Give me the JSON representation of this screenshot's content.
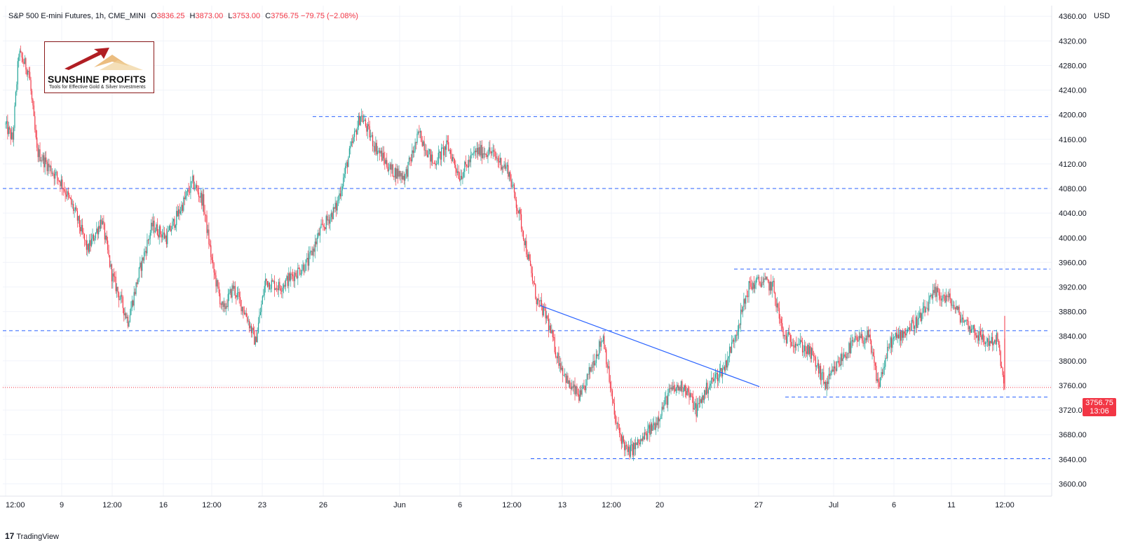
{
  "header": {
    "symbol": "S&P 500 E-mini Futures, 1h, CME_MINI",
    "o_label": "O",
    "o_value": "3836.25",
    "h_label": "H",
    "h_value": "3873.00",
    "l_label": "L",
    "l_value": "3753.00",
    "c_label": "C",
    "c_value": "3756.75",
    "change": "−79.75 (−2.08%)"
  },
  "currency": "USD",
  "logo": {
    "brand": "SUNSHINE PROFITS",
    "tagline": "Tools for Effective Gold & Silver Investments"
  },
  "price_tag": {
    "price": "3756.75",
    "countdown": "13:06"
  },
  "footer": {
    "brand": "TradingView"
  },
  "colors": {
    "up": "#26a69a",
    "down": "#f23645",
    "level_line": "#2962ff",
    "trend_line": "#2962ff",
    "grid": "#f0f3fa"
  },
  "chart_data": {
    "type": "candlestick",
    "timeframe": "1h",
    "ylim": [
      3580,
      4350
    ],
    "y_ticks": [
      3600,
      3640,
      3680,
      3720,
      3760,
      3800,
      3840,
      3880,
      3920,
      3960,
      4000,
      4040,
      4080,
      4120,
      4160,
      4200,
      4240,
      4280,
      4320,
      4360
    ],
    "x_labels": [
      "12:00",
      "9",
      "12:00",
      "16",
      "12:00",
      "23",
      "26",
      "Jun",
      "6",
      "12:00",
      "13",
      "12:00",
      "20",
      "27",
      "Jul",
      "6",
      "11",
      "12:00"
    ],
    "last_price": 3756.75,
    "horizontal_levels": [
      {
        "price": 4197,
        "x_start_label": "26",
        "x_end": "right"
      },
      {
        "price": 4080,
        "x_start": "left",
        "x_end": "right"
      },
      {
        "price": 3849,
        "x_start": "left",
        "x_end": "right"
      },
      {
        "price": 3949,
        "x_start_label": "27",
        "x_end": "right"
      },
      {
        "price": 3741,
        "x_start_label": "27",
        "x_end": "right"
      },
      {
        "price": 3641,
        "x_start_label": "13",
        "x_end": "right"
      }
    ],
    "trend_line": {
      "from_price": 3890,
      "to_price": 3758
    },
    "path_points": [
      {
        "i": 0,
        "p": 4185
      },
      {
        "i": 8,
        "p": 4160
      },
      {
        "i": 14,
        "p": 4300
      },
      {
        "i": 24,
        "p": 4270
      },
      {
        "i": 32,
        "p": 4140
      },
      {
        "i": 56,
        "p": 4090
      },
      {
        "i": 70,
        "p": 4040
      },
      {
        "i": 82,
        "p": 3980
      },
      {
        "i": 96,
        "p": 4030
      },
      {
        "i": 106,
        "p": 3940
      },
      {
        "i": 122,
        "p": 3865
      },
      {
        "i": 134,
        "p": 3950
      },
      {
        "i": 146,
        "p": 4020
      },
      {
        "i": 160,
        "p": 4000
      },
      {
        "i": 172,
        "p": 4040
      },
      {
        "i": 186,
        "p": 4090
      },
      {
        "i": 196,
        "p": 4060
      },
      {
        "i": 206,
        "p": 3950
      },
      {
        "i": 216,
        "p": 3880
      },
      {
        "i": 226,
        "p": 3920
      },
      {
        "i": 240,
        "p": 3870
      },
      {
        "i": 248,
        "p": 3830
      },
      {
        "i": 258,
        "p": 3930
      },
      {
        "i": 272,
        "p": 3920
      },
      {
        "i": 286,
        "p": 3940
      },
      {
        "i": 300,
        "p": 3960
      },
      {
        "i": 312,
        "p": 4010
      },
      {
        "i": 328,
        "p": 4050
      },
      {
        "i": 340,
        "p": 4130
      },
      {
        "i": 352,
        "p": 4200
      },
      {
        "i": 366,
        "p": 4150
      },
      {
        "i": 382,
        "p": 4110
      },
      {
        "i": 396,
        "p": 4100
      },
      {
        "i": 410,
        "p": 4170
      },
      {
        "i": 424,
        "p": 4120
      },
      {
        "i": 438,
        "p": 4150
      },
      {
        "i": 450,
        "p": 4100
      },
      {
        "i": 466,
        "p": 4140
      },
      {
        "i": 480,
        "p": 4140
      },
      {
        "i": 498,
        "p": 4110
      },
      {
        "i": 510,
        "p": 4030
      },
      {
        "i": 526,
        "p": 3900
      },
      {
        "i": 536,
        "p": 3870
      },
      {
        "i": 546,
        "p": 3810
      },
      {
        "i": 558,
        "p": 3760
      },
      {
        "i": 570,
        "p": 3740
      },
      {
        "i": 580,
        "p": 3790
      },
      {
        "i": 592,
        "p": 3840
      },
      {
        "i": 604,
        "p": 3700
      },
      {
        "i": 616,
        "p": 3650
      },
      {
        "i": 630,
        "p": 3670
      },
      {
        "i": 644,
        "p": 3700
      },
      {
        "i": 658,
        "p": 3750
      },
      {
        "i": 672,
        "p": 3760
      },
      {
        "i": 684,
        "p": 3720
      },
      {
        "i": 696,
        "p": 3760
      },
      {
        "i": 712,
        "p": 3790
      },
      {
        "i": 724,
        "p": 3850
      },
      {
        "i": 736,
        "p": 3920
      },
      {
        "i": 748,
        "p": 3930
      },
      {
        "i": 760,
        "p": 3920
      },
      {
        "i": 770,
        "p": 3840
      },
      {
        "i": 784,
        "p": 3830
      },
      {
        "i": 798,
        "p": 3810
      },
      {
        "i": 812,
        "p": 3760
      },
      {
        "i": 826,
        "p": 3800
      },
      {
        "i": 840,
        "p": 3830
      },
      {
        "i": 854,
        "p": 3840
      },
      {
        "i": 864,
        "p": 3760
      },
      {
        "i": 876,
        "p": 3830
      },
      {
        "i": 892,
        "p": 3850
      },
      {
        "i": 906,
        "p": 3870
      },
      {
        "i": 920,
        "p": 3910
      },
      {
        "i": 934,
        "p": 3900
      },
      {
        "i": 946,
        "p": 3870
      },
      {
        "i": 958,
        "p": 3850
      },
      {
        "i": 970,
        "p": 3830
      },
      {
        "i": 982,
        "p": 3835
      },
      {
        "i": 988,
        "p": 3756.75
      }
    ]
  }
}
